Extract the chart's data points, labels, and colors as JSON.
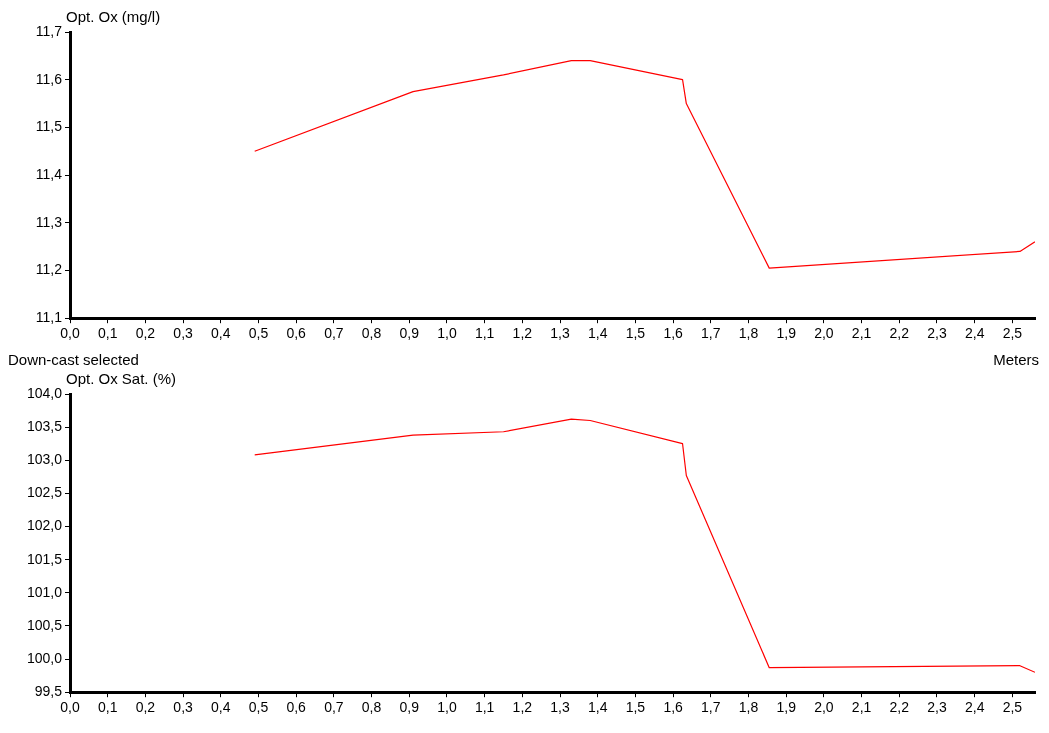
{
  "chart_data": [
    {
      "type": "line",
      "ylabel": "Opt. Ox (mg/l)",
      "xlabel": "Meters",
      "annotations": [
        "Down-cast selected"
      ],
      "grid": false,
      "legend": false,
      "marker": "none",
      "line_style": "solid",
      "x": [
        0.49,
        0.91,
        1.15,
        1.33,
        1.38,
        1.625,
        1.635,
        1.855,
        2.52,
        2.56
      ],
      "series": [
        {
          "color": "#ff0000",
          "values": [
            11.45,
            11.575,
            11.61,
            11.64,
            11.64,
            11.6,
            11.55,
            11.205,
            11.24,
            11.26
          ]
        }
      ],
      "xlim": [
        0,
        2.56
      ],
      "xticks": [
        {
          "value": 0,
          "label": "0,0"
        },
        {
          "value": 0.1,
          "label": "0,1"
        },
        {
          "value": 0.2,
          "label": "0,2"
        },
        {
          "value": 0.3,
          "label": "0,3"
        },
        {
          "value": 0.4,
          "label": "0,4"
        },
        {
          "value": 0.5,
          "label": "0,5"
        },
        {
          "value": 0.6,
          "label": "0,6"
        },
        {
          "value": 0.7,
          "label": "0,7"
        },
        {
          "value": 0.8,
          "label": "0,8"
        },
        {
          "value": 0.9,
          "label": "0,9"
        },
        {
          "value": 1.0,
          "label": "1,0"
        },
        {
          "value": 1.1,
          "label": "1,1"
        },
        {
          "value": 1.2,
          "label": "1,2"
        },
        {
          "value": 1.3,
          "label": "1,3"
        },
        {
          "value": 1.4,
          "label": "1,4"
        },
        {
          "value": 1.5,
          "label": "1,5"
        },
        {
          "value": 1.6,
          "label": "1,6"
        },
        {
          "value": 1.7,
          "label": "1,7"
        },
        {
          "value": 1.8,
          "label": "1,8"
        },
        {
          "value": 1.9,
          "label": "1,9"
        },
        {
          "value": 2.0,
          "label": "2,0"
        },
        {
          "value": 2.1,
          "label": "2,1"
        },
        {
          "value": 2.2,
          "label": "2,2"
        },
        {
          "value": 2.3,
          "label": "2,3"
        },
        {
          "value": 2.4,
          "label": "2,4"
        },
        {
          "value": 2.5,
          "label": "2,5"
        }
      ],
      "ylim": [
        11.1,
        11.7
      ],
      "yticks": [
        {
          "value": 11.1,
          "label": "11,1"
        },
        {
          "value": 11.2,
          "label": "11,2"
        },
        {
          "value": 11.3,
          "label": "11,3"
        },
        {
          "value": 11.4,
          "label": "11,4"
        },
        {
          "value": 11.5,
          "label": "11,5"
        },
        {
          "value": 11.6,
          "label": "11,6"
        },
        {
          "value": 11.7,
          "label": "11,7"
        }
      ]
    },
    {
      "type": "line",
      "ylabel": "Opt. Ox Sat. (%)",
      "grid": false,
      "legend": false,
      "marker": "none",
      "line_style": "solid",
      "x": [
        0.49,
        0.91,
        1.15,
        1.33,
        1.38,
        1.625,
        1.635,
        1.855,
        2.52,
        2.56
      ],
      "series": [
        {
          "color": "#ff0000",
          "values": [
            103.08,
            103.38,
            103.43,
            103.62,
            103.6,
            103.25,
            102.77,
            99.87,
            99.9,
            99.8
          ]
        }
      ],
      "xlim": [
        0,
        2.56
      ],
      "xticks": [
        {
          "value": 0,
          "label": "0,0"
        },
        {
          "value": 0.1,
          "label": "0,1"
        },
        {
          "value": 0.2,
          "label": "0,2"
        },
        {
          "value": 0.3,
          "label": "0,3"
        },
        {
          "value": 0.4,
          "label": "0,4"
        },
        {
          "value": 0.5,
          "label": "0,5"
        },
        {
          "value": 0.6,
          "label": "0,6"
        },
        {
          "value": 0.7,
          "label": "0,7"
        },
        {
          "value": 0.8,
          "label": "0,8"
        },
        {
          "value": 0.9,
          "label": "0,9"
        },
        {
          "value": 1.0,
          "label": "1,0"
        },
        {
          "value": 1.1,
          "label": "1,1"
        },
        {
          "value": 1.2,
          "label": "1,2"
        },
        {
          "value": 1.3,
          "label": "1,3"
        },
        {
          "value": 1.4,
          "label": "1,4"
        },
        {
          "value": 1.5,
          "label": "1,5"
        },
        {
          "value": 1.6,
          "label": "1,6"
        },
        {
          "value": 1.7,
          "label": "1,7"
        },
        {
          "value": 1.8,
          "label": "1,8"
        },
        {
          "value": 1.9,
          "label": "1,9"
        },
        {
          "value": 2.0,
          "label": "2,0"
        },
        {
          "value": 2.1,
          "label": "2,1"
        },
        {
          "value": 2.2,
          "label": "2,2"
        },
        {
          "value": 2.3,
          "label": "2,3"
        },
        {
          "value": 2.4,
          "label": "2,4"
        },
        {
          "value": 2.5,
          "label": "2,5"
        }
      ],
      "ylim": [
        99.5,
        104.0
      ],
      "yticks": [
        {
          "value": 99.5,
          "label": "99,5"
        },
        {
          "value": 100.0,
          "label": "100,0"
        },
        {
          "value": 100.5,
          "label": "100,5"
        },
        {
          "value": 101.0,
          "label": "101,0"
        },
        {
          "value": 101.5,
          "label": "101,5"
        },
        {
          "value": 102.0,
          "label": "102,0"
        },
        {
          "value": 102.5,
          "label": "102,5"
        },
        {
          "value": 103.0,
          "label": "103,0"
        },
        {
          "value": 103.5,
          "label": "103,5"
        },
        {
          "value": 104.0,
          "label": "104,0"
        }
      ]
    }
  ]
}
